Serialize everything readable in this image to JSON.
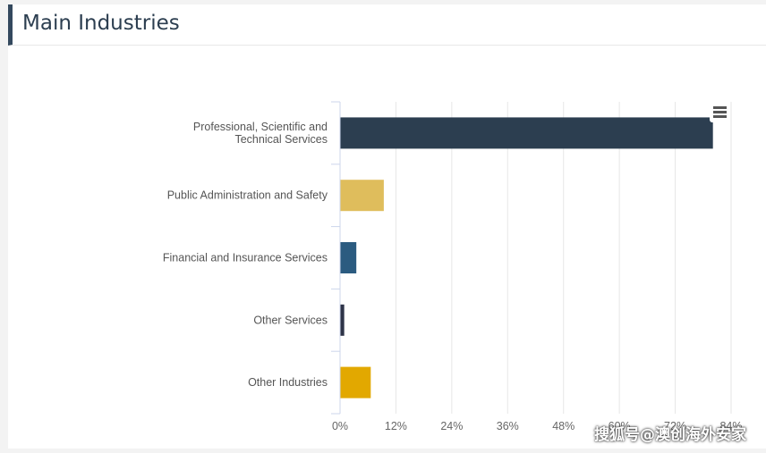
{
  "header": {
    "title": "Main Industries"
  },
  "chart_data": {
    "type": "bar",
    "orientation": "horizontal",
    "categories": [
      [
        "Professional, Scientific and",
        "Technical Services"
      ],
      [
        "Public Administration and Safety"
      ],
      [
        "Financial and Insurance Services"
      ],
      [
        "Other Services"
      ],
      [
        "Other Industries"
      ]
    ],
    "values": [
      80,
      9.3,
      3.4,
      0.8,
      6.5
    ],
    "colors": [
      "#2c3e50",
      "#dfbd5c",
      "#2b5b80",
      "#2e3448",
      "#e2a800"
    ],
    "xticks": [
      "0%",
      "12%",
      "24%",
      "36%",
      "48%",
      "60%",
      "72%",
      "84%"
    ],
    "xlim": [
      0,
      84
    ],
    "grid": true,
    "legend": "none"
  },
  "menu": {
    "icon": "hamburger-menu-icon"
  },
  "watermark": {
    "text": "搜狐号@澳创海外安家"
  }
}
